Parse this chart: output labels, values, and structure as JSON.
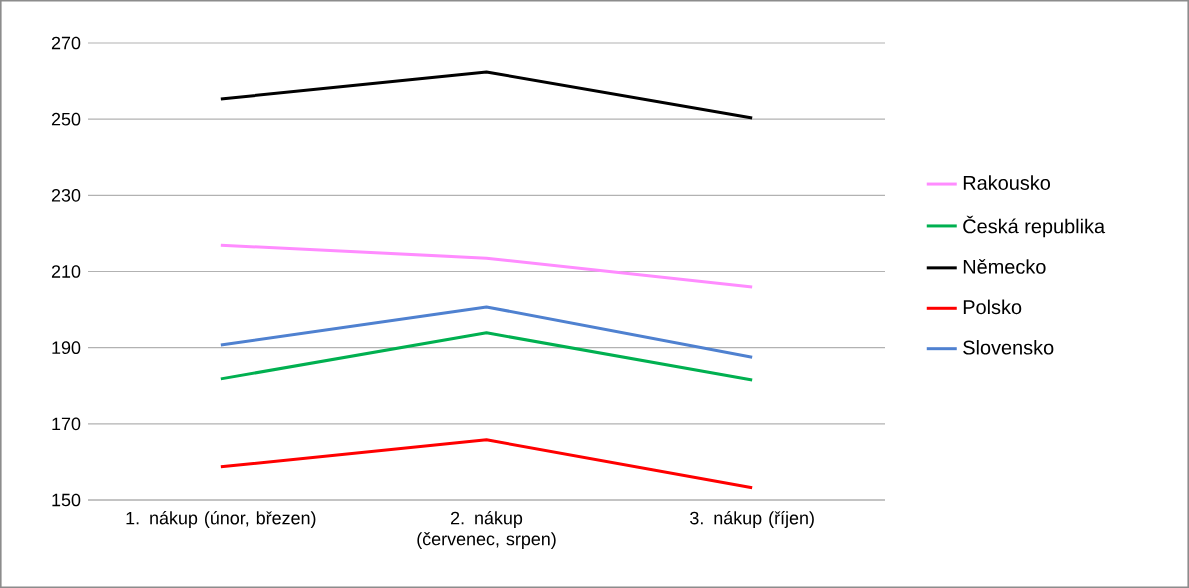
{
  "chart_data": {
    "type": "line",
    "categories": [
      "1. nákup (únor, březen)",
      "2. nákup (červenec, srpen)",
      "3. nákup (říjen)"
    ],
    "series": [
      {
        "name": "Rakousko",
        "color": "#ff8cff",
        "values": [
          216.9,
          213.5,
          205.9
        ]
      },
      {
        "name": "Česká republika",
        "color": "#00b050",
        "values": [
          181.8,
          193.9,
          181.5
        ]
      },
      {
        "name": "Německo",
        "color": "#000000",
        "values": [
          255.3,
          262.4,
          250.3
        ]
      },
      {
        "name": "Polsko",
        "color": "#ff0000",
        "values": [
          158.7,
          165.8,
          153.2
        ]
      },
      {
        "name": "Slovensko",
        "color": "#4f81d0",
        "values": [
          190.7,
          200.7,
          187.5
        ]
      }
    ],
    "ylim": [
      150,
      270
    ],
    "yticks": [
      150,
      170,
      190,
      210,
      230,
      250,
      270
    ],
    "grid": "y",
    "legend": "right",
    "marker": "none",
    "line_style": "solid"
  }
}
